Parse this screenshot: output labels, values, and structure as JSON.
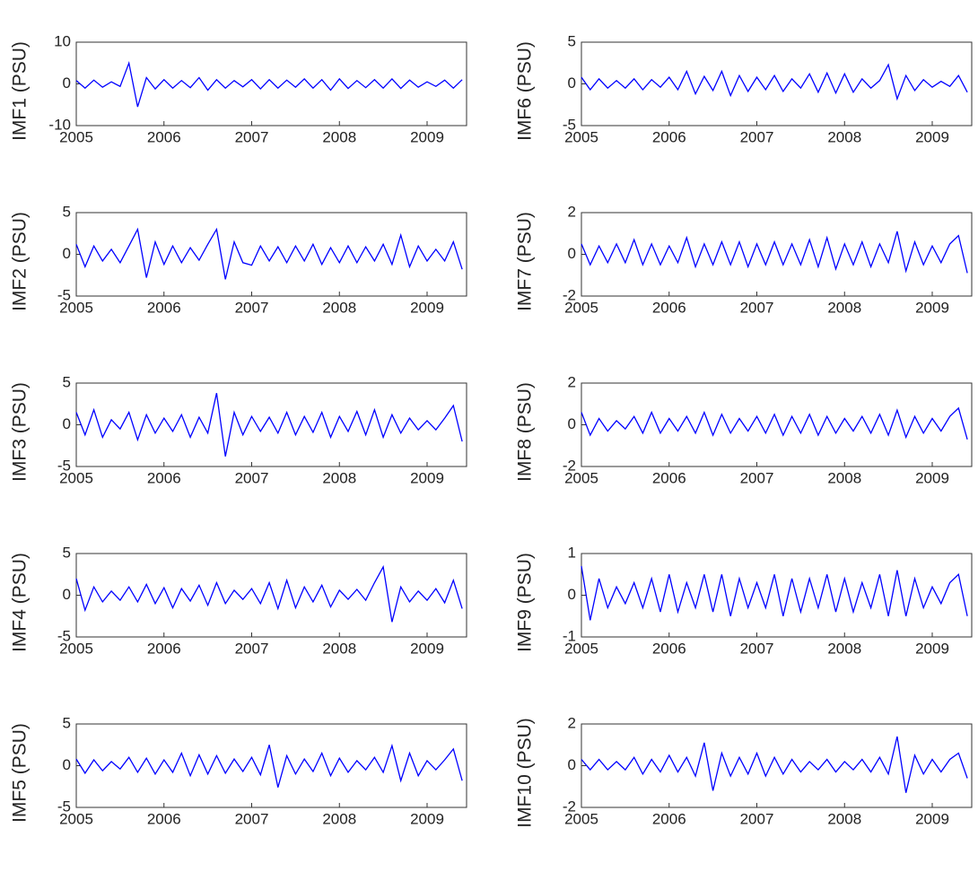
{
  "chart_data": [
    {
      "type": "line",
      "ylabel": "IMF1 (PSU)",
      "color": "#0000ff",
      "x": [
        2005,
        2005.1,
        2005.2,
        2005.3,
        2005.4,
        2005.5,
        2005.6,
        2005.7,
        2005.8,
        2005.9,
        2006,
        2006.1,
        2006.2,
        2006.3,
        2006.4,
        2006.5,
        2006.6,
        2006.7,
        2006.8,
        2006.9,
        2007,
        2007.1,
        2007.2,
        2007.3,
        2007.4,
        2007.5,
        2007.6,
        2007.7,
        2007.8,
        2007.9,
        2008,
        2008.1,
        2008.2,
        2008.3,
        2008.4,
        2008.5,
        2008.6,
        2008.7,
        2008.8,
        2008.9,
        2009,
        2009.1,
        2009.2,
        2009.3,
        2009.4
      ],
      "values": [
        0.8,
        -1,
        0.9,
        -0.8,
        0.5,
        -0.6,
        5,
        -5.5,
        1.5,
        -1.2,
        1,
        -1,
        0.8,
        -0.9,
        1.5,
        -1.5,
        1,
        -1,
        0.8,
        -0.7,
        1,
        -1.2,
        1,
        -1,
        0.9,
        -0.8,
        1.2,
        -1,
        1,
        -1.5,
        1.2,
        -1.1,
        0.8,
        -0.9,
        1,
        -1,
        1.2,
        -1.1,
        0.9,
        -0.8,
        0.5,
        -0.6,
        0.9,
        -1,
        1
      ],
      "xlim": [
        2005,
        2009.45
      ],
      "xticks": [
        2005,
        2006,
        2007,
        2008,
        2009
      ],
      "ylim": [
        -10,
        10
      ],
      "yticks": [
        -10,
        0,
        10
      ]
    },
    {
      "type": "line",
      "ylabel": "IMF2 (PSU)",
      "color": "#0000ff",
      "x": [
        2005,
        2005.1,
        2005.2,
        2005.3,
        2005.4,
        2005.5,
        2005.6,
        2005.7,
        2005.8,
        2005.9,
        2006,
        2006.1,
        2006.2,
        2006.3,
        2006.4,
        2006.5,
        2006.6,
        2006.7,
        2006.8,
        2006.9,
        2007,
        2007.1,
        2007.2,
        2007.3,
        2007.4,
        2007.5,
        2007.6,
        2007.7,
        2007.8,
        2007.9,
        2008,
        2008.1,
        2008.2,
        2008.3,
        2008.4,
        2008.5,
        2008.6,
        2008.7,
        2008.8,
        2008.9,
        2009,
        2009.1,
        2009.2,
        2009.3,
        2009.4
      ],
      "values": [
        1.2,
        -1.5,
        1,
        -0.8,
        0.6,
        -1,
        1,
        3,
        -2.8,
        1.5,
        -1.2,
        1,
        -1,
        0.8,
        -0.7,
        1.2,
        3,
        -3,
        1.5,
        -1,
        -1.3,
        1,
        -0.8,
        0.9,
        -1,
        1,
        -0.8,
        1.2,
        -1.2,
        0.8,
        -1,
        1,
        -1,
        0.9,
        -0.8,
        1.2,
        -1.2,
        2.3,
        -1.5,
        1,
        -0.8,
        0.6,
        -0.8,
        1.5,
        -1.8
      ],
      "xlim": [
        2005,
        2009.45
      ],
      "xticks": [
        2005,
        2006,
        2007,
        2008,
        2009
      ],
      "ylim": [
        -5,
        5
      ],
      "yticks": [
        -5,
        0,
        5
      ]
    },
    {
      "type": "line",
      "ylabel": "IMF3 (PSU)",
      "color": "#0000ff",
      "x": [
        2005,
        2005.1,
        2005.2,
        2005.3,
        2005.4,
        2005.5,
        2005.6,
        2005.7,
        2005.8,
        2005.9,
        2006,
        2006.1,
        2006.2,
        2006.3,
        2006.4,
        2006.5,
        2006.6,
        2006.7,
        2006.8,
        2006.9,
        2007,
        2007.1,
        2007.2,
        2007.3,
        2007.4,
        2007.5,
        2007.6,
        2007.7,
        2007.8,
        2007.9,
        2008,
        2008.1,
        2008.2,
        2008.3,
        2008.4,
        2008.5,
        2008.6,
        2008.7,
        2008.8,
        2008.9,
        2009,
        2009.1,
        2009.2,
        2009.3,
        2009.4
      ],
      "values": [
        1.5,
        -1.2,
        1.8,
        -1.5,
        0.6,
        -0.5,
        1.5,
        -1.8,
        1.2,
        -1,
        0.8,
        -0.8,
        1.2,
        -1.5,
        0.9,
        -1,
        3.8,
        -3.8,
        1.5,
        -1.2,
        1,
        -0.8,
        0.9,
        -1,
        1.5,
        -1.2,
        1,
        -0.9,
        1.5,
        -1.5,
        1,
        -0.8,
        1.6,
        -1.2,
        1.8,
        -1.5,
        1.2,
        -1,
        0.8,
        -0.6,
        0.5,
        -0.6,
        0.8,
        2.3,
        -2
      ],
      "xlim": [
        2005,
        2009.45
      ],
      "xticks": [
        2005,
        2006,
        2007,
        2008,
        2009
      ],
      "ylim": [
        -5,
        5
      ],
      "yticks": [
        -5,
        0,
        5
      ]
    },
    {
      "type": "line",
      "ylabel": "IMF4 (PSU)",
      "color": "#0000ff",
      "x": [
        2005,
        2005.1,
        2005.2,
        2005.3,
        2005.4,
        2005.5,
        2005.6,
        2005.7,
        2005.8,
        2005.9,
        2006,
        2006.1,
        2006.2,
        2006.3,
        2006.4,
        2006.5,
        2006.6,
        2006.7,
        2006.8,
        2006.9,
        2007,
        2007.1,
        2007.2,
        2007.3,
        2007.4,
        2007.5,
        2007.6,
        2007.7,
        2007.8,
        2007.9,
        2008,
        2008.1,
        2008.2,
        2008.3,
        2008.4,
        2008.5,
        2008.6,
        2008.7,
        2008.8,
        2008.9,
        2009,
        2009.1,
        2009.2,
        2009.3,
        2009.4
      ],
      "values": [
        2,
        -1.8,
        1,
        -0.8,
        0.5,
        -0.6,
        1,
        -0.8,
        1.3,
        -1,
        0.9,
        -1.5,
        0.8,
        -0.7,
        1.2,
        -1.2,
        1.5,
        -1,
        0.6,
        -0.5,
        0.8,
        -1,
        1.5,
        -1.6,
        1.8,
        -1.5,
        1,
        -0.8,
        1.2,
        -1.4,
        0.6,
        -0.5,
        0.7,
        -0.6,
        1.5,
        3.4,
        -3.2,
        1,
        -0.8,
        0.5,
        -0.6,
        0.8,
        -0.9,
        1.8,
        -1.6
      ],
      "xlim": [
        2005,
        2009.45
      ],
      "xticks": [
        2005,
        2006,
        2007,
        2008,
        2009
      ],
      "ylim": [
        -5,
        5
      ],
      "yticks": [
        -5,
        0,
        5
      ]
    },
    {
      "type": "line",
      "ylabel": "IMF5 (PSU)",
      "color": "#0000ff",
      "x": [
        2005,
        2005.1,
        2005.2,
        2005.3,
        2005.4,
        2005.5,
        2005.6,
        2005.7,
        2005.8,
        2005.9,
        2006,
        2006.1,
        2006.2,
        2006.3,
        2006.4,
        2006.5,
        2006.6,
        2006.7,
        2006.8,
        2006.9,
        2007,
        2007.1,
        2007.2,
        2007.3,
        2007.4,
        2007.5,
        2007.6,
        2007.7,
        2007.8,
        2007.9,
        2008,
        2008.1,
        2008.2,
        2008.3,
        2008.4,
        2008.5,
        2008.6,
        2008.7,
        2008.8,
        2008.9,
        2009,
        2009.1,
        2009.2,
        2009.3,
        2009.4
      ],
      "values": [
        0.8,
        -0.9,
        0.7,
        -0.6,
        0.5,
        -0.4,
        1,
        -0.8,
        0.9,
        -1,
        0.7,
        -0.8,
        1.5,
        -1.2,
        1.3,
        -1,
        1.2,
        -0.9,
        0.8,
        -0.7,
        1,
        -1.1,
        2.5,
        -2.6,
        1.2,
        -1,
        0.8,
        -0.7,
        1.5,
        -1.2,
        0.9,
        -0.8,
        0.6,
        -0.5,
        1,
        -0.8,
        2.4,
        -1.8,
        1.5,
        -1.2,
        0.6,
        -0.5,
        0.7,
        2,
        -1.8
      ],
      "xlim": [
        2005,
        2009.45
      ],
      "xticks": [
        2005,
        2006,
        2007,
        2008,
        2009
      ],
      "ylim": [
        -5,
        5
      ],
      "yticks": [
        -5,
        0,
        5
      ]
    },
    {
      "type": "line",
      "ylabel": "IMF6 (PSU)",
      "color": "#0000ff",
      "x": [
        2005,
        2005.1,
        2005.2,
        2005.3,
        2005.4,
        2005.5,
        2005.6,
        2005.7,
        2005.8,
        2005.9,
        2006,
        2006.1,
        2006.2,
        2006.3,
        2006.4,
        2006.5,
        2006.6,
        2006.7,
        2006.8,
        2006.9,
        2007,
        2007.1,
        2007.2,
        2007.3,
        2007.4,
        2007.5,
        2007.6,
        2007.7,
        2007.8,
        2007.9,
        2008,
        2008.1,
        2008.2,
        2008.3,
        2008.4,
        2008.5,
        2008.6,
        2008.7,
        2008.8,
        2008.9,
        2009,
        2009.1,
        2009.2,
        2009.3,
        2009.4
      ],
      "values": [
        0.8,
        -0.7,
        0.6,
        -0.5,
        0.4,
        -0.5,
        0.6,
        -0.7,
        0.5,
        -0.4,
        0.8,
        -0.7,
        1.5,
        -1.2,
        0.9,
        -0.8,
        1.5,
        -1.4,
        1,
        -0.9,
        0.8,
        -0.7,
        1,
        -0.9,
        0.6,
        -0.5,
        1.2,
        -1,
        1.3,
        -1.1,
        1.2,
        -1,
        0.6,
        -0.5,
        0.4,
        2.3,
        -1.8,
        1,
        -0.8,
        0.5,
        -0.4,
        0.3,
        -0.3,
        1,
        -1
      ],
      "xlim": [
        2005,
        2009.45
      ],
      "xticks": [
        2005,
        2006,
        2007,
        2008,
        2009
      ],
      "ylim": [
        -5,
        5
      ],
      "yticks": [
        -5,
        0,
        5
      ]
    },
    {
      "type": "line",
      "ylabel": "IMF7 (PSU)",
      "color": "#0000ff",
      "x": [
        2005,
        2005.1,
        2005.2,
        2005.3,
        2005.4,
        2005.5,
        2005.6,
        2005.7,
        2005.8,
        2005.9,
        2006,
        2006.1,
        2006.2,
        2006.3,
        2006.4,
        2006.5,
        2006.6,
        2006.7,
        2006.8,
        2006.9,
        2007,
        2007.1,
        2007.2,
        2007.3,
        2007.4,
        2007.5,
        2007.6,
        2007.7,
        2007.8,
        2007.9,
        2008,
        2008.1,
        2008.2,
        2008.3,
        2008.4,
        2008.5,
        2008.6,
        2008.7,
        2008.8,
        2008.9,
        2009,
        2009.1,
        2009.2,
        2009.3,
        2009.4
      ],
      "values": [
        0.5,
        -0.5,
        0.4,
        -0.4,
        0.5,
        -0.4,
        0.7,
        -0.5,
        0.5,
        -0.5,
        0.4,
        -0.4,
        0.8,
        -0.6,
        0.5,
        -0.5,
        0.6,
        -0.5,
        0.6,
        -0.6,
        0.5,
        -0.5,
        0.6,
        -0.5,
        0.5,
        -0.5,
        0.7,
        -0.6,
        0.8,
        -0.7,
        0.5,
        -0.5,
        0.6,
        -0.6,
        0.5,
        -0.4,
        1.1,
        -0.8,
        0.6,
        -0.5,
        0.4,
        -0.4,
        0.5,
        0.9,
        -0.9
      ],
      "xlim": [
        2005,
        2009.45
      ],
      "xticks": [
        2005,
        2006,
        2007,
        2008,
        2009
      ],
      "ylim": [
        -2,
        2
      ],
      "yticks": [
        -2,
        0,
        2
      ]
    },
    {
      "type": "line",
      "ylabel": "IMF8 (PSU)",
      "color": "#0000ff",
      "x": [
        2005,
        2005.1,
        2005.2,
        2005.3,
        2005.4,
        2005.5,
        2005.6,
        2005.7,
        2005.8,
        2005.9,
        2006,
        2006.1,
        2006.2,
        2006.3,
        2006.4,
        2006.5,
        2006.6,
        2006.7,
        2006.8,
        2006.9,
        2007,
        2007.1,
        2007.2,
        2007.3,
        2007.4,
        2007.5,
        2007.6,
        2007.7,
        2007.8,
        2007.9,
        2008,
        2008.1,
        2008.2,
        2008.3,
        2008.4,
        2008.5,
        2008.6,
        2008.7,
        2008.8,
        2008.9,
        2009,
        2009.1,
        2009.2,
        2009.3,
        2009.4
      ],
      "values": [
        0.6,
        -0.5,
        0.3,
        -0.3,
        0.2,
        -0.2,
        0.4,
        -0.4,
        0.6,
        -0.4,
        0.3,
        -0.3,
        0.4,
        -0.4,
        0.6,
        -0.5,
        0.5,
        -0.4,
        0.3,
        -0.3,
        0.4,
        -0.4,
        0.5,
        -0.5,
        0.4,
        -0.4,
        0.5,
        -0.5,
        0.4,
        -0.4,
        0.3,
        -0.3,
        0.4,
        -0.4,
        0.5,
        -0.5,
        0.7,
        -0.6,
        0.4,
        -0.4,
        0.3,
        -0.3,
        0.4,
        0.8,
        -0.7
      ],
      "xlim": [
        2005,
        2009.45
      ],
      "xticks": [
        2005,
        2006,
        2007,
        2008,
        2009
      ],
      "ylim": [
        -2,
        2
      ],
      "yticks": [
        -2,
        0,
        2
      ]
    },
    {
      "type": "line",
      "ylabel": "IMF9 (PSU)",
      "color": "#0000ff",
      "x": [
        2005,
        2005.1,
        2005.2,
        2005.3,
        2005.4,
        2005.5,
        2005.6,
        2005.7,
        2005.8,
        2005.9,
        2006,
        2006.1,
        2006.2,
        2006.3,
        2006.4,
        2006.5,
        2006.6,
        2006.7,
        2006.8,
        2006.9,
        2007,
        2007.1,
        2007.2,
        2007.3,
        2007.4,
        2007.5,
        2007.6,
        2007.7,
        2007.8,
        2007.9,
        2008,
        2008.1,
        2008.2,
        2008.3,
        2008.4,
        2008.5,
        2008.6,
        2008.7,
        2008.8,
        2008.9,
        2009,
        2009.1,
        2009.2,
        2009.3,
        2009.4
      ],
      "values": [
        0.7,
        -0.6,
        0.4,
        -0.3,
        0.2,
        -0.2,
        0.3,
        -0.3,
        0.4,
        -0.4,
        0.5,
        -0.4,
        0.3,
        -0.3,
        0.5,
        -0.4,
        0.5,
        -0.5,
        0.4,
        -0.3,
        0.3,
        -0.3,
        0.5,
        -0.5,
        0.4,
        -0.4,
        0.4,
        -0.3,
        0.5,
        -0.4,
        0.4,
        -0.4,
        0.3,
        -0.3,
        0.5,
        -0.5,
        0.6,
        -0.5,
        0.4,
        -0.3,
        0.2,
        -0.2,
        0.3,
        0.5,
        -0.5
      ],
      "xlim": [
        2005,
        2009.45
      ],
      "xticks": [
        2005,
        2006,
        2007,
        2008,
        2009
      ],
      "ylim": [
        -1,
        1
      ],
      "yticks": [
        -1,
        0,
        1
      ]
    },
    {
      "type": "line",
      "ylabel": "IMF10 (PSU)",
      "color": "#0000ff",
      "x": [
        2005,
        2005.1,
        2005.2,
        2005.3,
        2005.4,
        2005.5,
        2005.6,
        2005.7,
        2005.8,
        2005.9,
        2006,
        2006.1,
        2006.2,
        2006.3,
        2006.4,
        2006.5,
        2006.6,
        2006.7,
        2006.8,
        2006.9,
        2007,
        2007.1,
        2007.2,
        2007.3,
        2007.4,
        2007.5,
        2007.6,
        2007.7,
        2007.8,
        2007.9,
        2008,
        2008.1,
        2008.2,
        2008.3,
        2008.4,
        2008.5,
        2008.6,
        2008.7,
        2008.8,
        2008.9,
        2009,
        2009.1,
        2009.2,
        2009.3,
        2009.4
      ],
      "values": [
        0.3,
        -0.2,
        0.3,
        -0.2,
        0.2,
        -0.2,
        0.4,
        -0.4,
        0.3,
        -0.3,
        0.5,
        -0.3,
        0.4,
        -0.5,
        1.1,
        -1.2,
        0.6,
        -0.5,
        0.4,
        -0.4,
        0.6,
        -0.5,
        0.4,
        -0.4,
        0.3,
        -0.3,
        0.2,
        -0.2,
        0.3,
        -0.3,
        0.2,
        -0.2,
        0.3,
        -0.3,
        0.4,
        -0.4,
        1.4,
        -1.3,
        0.5,
        -0.4,
        0.3,
        -0.3,
        0.3,
        0.6,
        -0.6
      ],
      "xlim": [
        2005,
        2009.45
      ],
      "xticks": [
        2005,
        2006,
        2007,
        2008,
        2009
      ],
      "ylim": [
        -2,
        2
      ],
      "yticks": [
        -2,
        0,
        2
      ]
    }
  ]
}
